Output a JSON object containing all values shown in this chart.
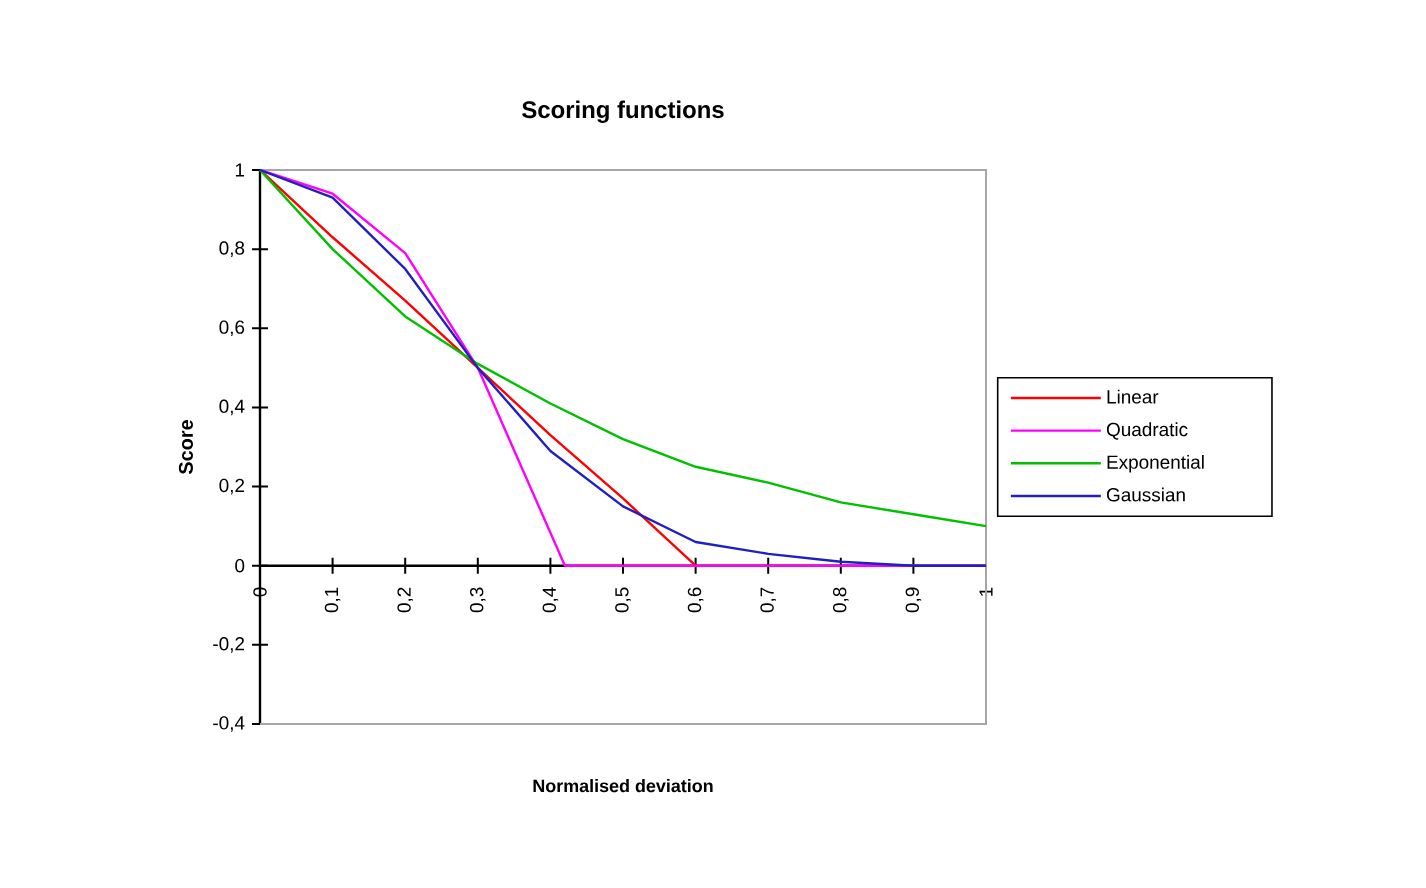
{
  "chart_data": {
    "type": "line",
    "title": "Scoring functions",
    "xlabel": "Normalised deviation",
    "ylabel": "Score",
    "xlim": [
      0,
      1
    ],
    "ylim": [
      -0.4,
      1
    ],
    "xticks": [
      0,
      {
        "value": 0.1,
        "label": "0,1"
      },
      {
        "value": 0.2,
        "label": "0,2"
      },
      {
        "value": 0.3,
        "label": "0,3"
      },
      {
        "value": 0.4,
        "label": "0,4"
      },
      {
        "value": 0.5,
        "label": "0,5"
      },
      {
        "value": 0.6,
        "label": "0,6"
      },
      {
        "value": 0.7,
        "label": "0,7"
      },
      {
        "value": 0.8,
        "label": "0,8"
      },
      {
        "value": 0.9,
        "label": "0,9"
      },
      1
    ],
    "yticks": [
      {
        "value": -0.4,
        "label": "-0,4"
      },
      {
        "value": -0.2,
        "label": "-0,2"
      },
      0,
      {
        "value": 0.2,
        "label": "0,2"
      },
      {
        "value": 0.4,
        "label": "0,4"
      },
      {
        "value": 0.6,
        "label": "0,6"
      },
      {
        "value": 0.8,
        "label": "0,8"
      },
      1
    ],
    "grid": false,
    "legend": "right",
    "marker": "none",
    "line_style": "solid",
    "series": [
      {
        "name": "Linear",
        "color": "#ff0000",
        "x": [
          0,
          0.1,
          0.2,
          0.3,
          0.4,
          0.5,
          0.6
        ],
        "values": [
          1,
          0.83,
          0.67,
          0.5,
          0.33,
          0.17,
          0
        ]
      },
      {
        "name": "Quadratic",
        "color": "#ff00ff",
        "x": [
          0,
          0.1,
          0.2,
          0.3,
          0.42,
          0.5,
          0.6,
          0.7,
          0.8,
          0.9,
          1
        ],
        "values": [
          1,
          0.94,
          0.79,
          0.5,
          0,
          0,
          0,
          0,
          0,
          0,
          0
        ]
      },
      {
        "name": "Exponential",
        "color": "#00c000",
        "x": [
          0,
          0.1,
          0.2,
          0.3,
          0.4,
          0.5,
          0.6,
          0.7,
          0.8,
          0.9,
          1
        ],
        "values": [
          1,
          0.8,
          0.63,
          0.51,
          0.41,
          0.32,
          0.25,
          0.21,
          0.16,
          0.13,
          0.1
        ]
      },
      {
        "name": "Gaussian",
        "color": "#2020c0",
        "x": [
          0,
          0.1,
          0.2,
          0.3,
          0.4,
          0.5,
          0.6,
          0.7,
          0.8,
          0.9,
          1
        ],
        "values": [
          1,
          0.93,
          0.75,
          0.5,
          0.29,
          0.15,
          0.06,
          0.03,
          0.01,
          0,
          0
        ]
      }
    ]
  }
}
